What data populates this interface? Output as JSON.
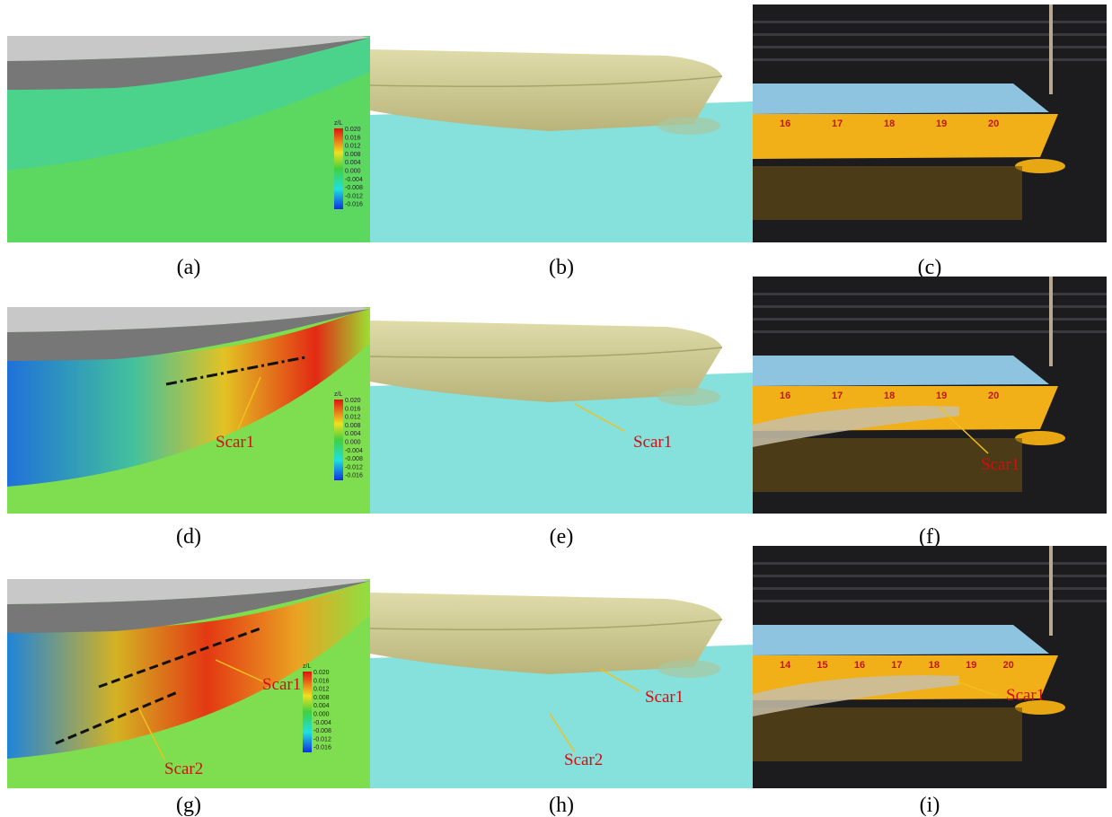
{
  "panels": [
    {
      "caption": "(a)",
      "colorbar": {
        "title": "z/L",
        "ticks": [
          "0.020",
          "0.016",
          "0.012",
          "0.008",
          "0.004",
          "0.000",
          "-0.004",
          "-0.008",
          "-0.012",
          "-0.016"
        ]
      }
    },
    {
      "caption": "(b)"
    },
    {
      "caption": "(c)",
      "stations": [
        "16",
        "17",
        "18",
        "19",
        "20"
      ]
    },
    {
      "caption": "(d)",
      "colorbar": {
        "title": "z/L",
        "ticks": [
          "0.020",
          "0.016",
          "0.012",
          "0.008",
          "0.004",
          "0.000",
          "-0.004",
          "-0.008",
          "-0.012",
          "-0.016"
        ]
      },
      "labels": [
        "Scar1"
      ]
    },
    {
      "caption": "(e)",
      "labels": [
        "Scar1"
      ]
    },
    {
      "caption": "(f)",
      "stations": [
        "16",
        "17",
        "18",
        "19",
        "20"
      ],
      "labels": [
        "Scar1"
      ]
    },
    {
      "caption": "(g)",
      "colorbar": {
        "title": "z/L",
        "ticks": [
          "0.020",
          "0.016",
          "0.012",
          "0.008",
          "0.004",
          "0.000",
          "-0.004",
          "-0.008",
          "-0.012",
          "-0.016"
        ]
      },
      "labels": [
        "Scar1",
        "Scar2"
      ]
    },
    {
      "caption": "(h)",
      "labels": [
        "Scar1",
        "Scar2"
      ]
    },
    {
      "caption": "(i)",
      "stations": [
        "14",
        "15",
        "16",
        "17",
        "18",
        "19",
        "20"
      ],
      "labels": [
        "Scar1"
      ]
    }
  ]
}
